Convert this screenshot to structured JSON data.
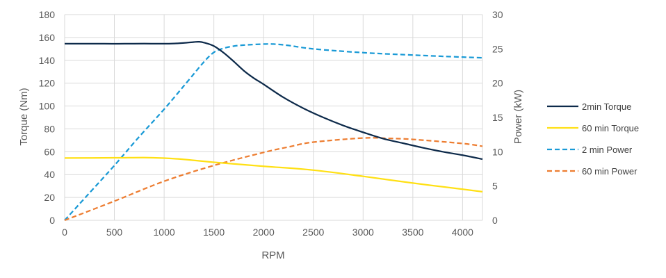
{
  "chart_data": {
    "type": "line",
    "xlabel": "RPM",
    "ylabel": "Torque (Nm)",
    "y2label": "Power (kW)",
    "xlim": [
      0,
      4200
    ],
    "ylim": [
      0,
      180
    ],
    "y2lim": [
      0,
      30
    ],
    "x_ticks": [
      0,
      500,
      1000,
      1500,
      2000,
      2500,
      3000,
      3500,
      4000
    ],
    "y_ticks": [
      0,
      20,
      40,
      60,
      80,
      100,
      120,
      140,
      160,
      180
    ],
    "y2_ticks": [
      0,
      5,
      10,
      15,
      20,
      25,
      30
    ],
    "grid": true,
    "legend_position": "right",
    "series": [
      {
        "name": "2min Torque",
        "axis": "left",
        "color": "#0d2a4a",
        "dash": "solid",
        "x": [
          0,
          200,
          400,
          600,
          800,
          1000,
          1100,
          1200,
          1300,
          1350,
          1400,
          1500,
          1600,
          1700,
          1800,
          1900,
          2000,
          2200,
          2400,
          2600,
          2800,
          3000,
          3200,
          3400,
          3600,
          3800,
          4000,
          4200
        ],
        "values": [
          154.5,
          154.5,
          154.5,
          154.5,
          154.6,
          154.5,
          154.7,
          155.2,
          156,
          156.2,
          155.5,
          152.5,
          146.5,
          139,
          131,
          124.5,
          119,
          107.5,
          98,
          90,
          83,
          77,
          71.5,
          67.5,
          63.5,
          60,
          57,
          53.5
        ]
      },
      {
        "name": "60 min Torque",
        "axis": "left",
        "color": "#ffe014",
        "dash": "solid",
        "x": [
          0,
          500,
          800,
          1000,
          1200,
          1500,
          2000,
          2500,
          3000,
          3500,
          4000,
          4200
        ],
        "values": [
          54.5,
          54.7,
          54.9,
          54.4,
          53.3,
          50.8,
          47.3,
          43.9,
          38.5,
          32.6,
          27.2,
          25
        ]
      },
      {
        "name": "2 min Power",
        "axis": "right",
        "color": "#1a9ad6",
        "dash": "dashed",
        "x": [
          0,
          250,
          500,
          750,
          1000,
          1250,
          1400,
          1500,
          1600,
          1700,
          1800,
          2000,
          2100,
          2250,
          2500,
          3000,
          3500,
          4000,
          4200
        ],
        "values": [
          0,
          4,
          8,
          12.2,
          16.2,
          20.5,
          23.1,
          24.5,
          25.1,
          25.4,
          25.55,
          25.7,
          25.7,
          25.5,
          25,
          24.45,
          24.1,
          23.8,
          23.7
        ]
      },
      {
        "name": "60 min Power",
        "axis": "right",
        "color": "#ed7d31",
        "dash": "dashed",
        "x": [
          0,
          500,
          1000,
          1500,
          2000,
          2250,
          2500,
          3000,
          3250,
          3500,
          4000,
          4200
        ],
        "values": [
          0,
          2.8,
          5.7,
          8,
          9.9,
          10.7,
          11.4,
          12,
          11.95,
          11.8,
          11.2,
          10.8
        ]
      }
    ]
  }
}
